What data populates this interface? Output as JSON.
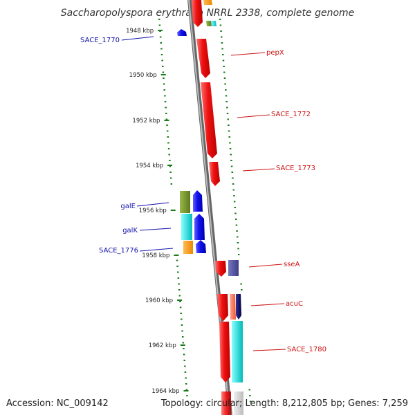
{
  "title": "Saccharopolyspora erythraea NRRL 2338, complete genome",
  "accession": "Accession: NC_009142",
  "topology": "Topology: circular; Length: 8,212,805 bp; Genes: 7,259",
  "ticks": [
    "1948 kbp",
    "1950 kbp",
    "1952 kbp",
    "1954 kbp",
    "1956 kbp",
    "1958 kbp",
    "1960 kbp",
    "1962 kbp",
    "1964 kbp"
  ],
  "labels": {
    "sace_1770": "SACE_1770",
    "pepx": "pepX",
    "sace_1772": "SACE_1772",
    "sace_1773": "SACE_1773",
    "gale": "galE",
    "galk": "galK",
    "sace_1776": "SACE_1776",
    "ssea": "sseA",
    "acuc": "acuC",
    "sace_1780": "SACE_1780"
  },
  "colors": {
    "forward_strand": "#ee1111",
    "reverse_strand": "#1111ee",
    "forward_label": "#cc1111",
    "reverse_label": "#1111aa",
    "backbone": "#888888",
    "gc_skew": "#1a7a1a",
    "olive": "#6b8e23",
    "cyan": "#00cccc",
    "orange": "#ff9900",
    "slate": "#5050a0",
    "navy": "#000066",
    "salmon": "#ff7755"
  }
}
